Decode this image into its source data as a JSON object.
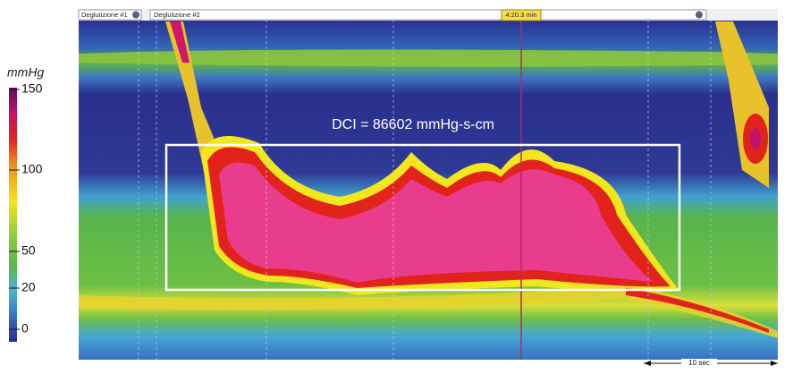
{
  "colorbar": {
    "unit": "mmHg",
    "ticks": [
      150,
      100,
      50,
      20,
      0
    ]
  },
  "tabs": [
    "Deglutizione #1",
    "Deglutizione #2"
  ],
  "time_marker": "4:20.3 min",
  "annotation": "DCI = 86602 mmHg-s-cm",
  "scale_label": "10 sec"
}
